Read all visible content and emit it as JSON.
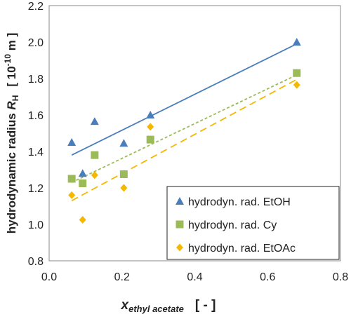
{
  "chart_data": {
    "type": "scatter",
    "xlim": [
      0.0,
      0.8
    ],
    "ylim": [
      0.8,
      2.2
    ],
    "xticks": [
      "0.0",
      "0.2",
      "0.4",
      "0.6",
      "0.8"
    ],
    "yticks": [
      "0.8",
      "1.0",
      "1.2",
      "1.4",
      "1.6",
      "1.8",
      "2.0",
      "2.2"
    ],
    "xlabel": {
      "main": "x",
      "subscript": "ethyl acetate",
      "unit": "[ - ]"
    },
    "ylabel": {
      "main": "hydrodynamic radius ",
      "symbol": "R",
      "subscript": "H",
      "unit_prefix": "[ 10",
      "unit_exponent": "-10",
      "unit_suffix": " m ]"
    },
    "grid": false,
    "legend_position": "bottom-right",
    "series": [
      {
        "name": "hydrodyn. rad. EtOH",
        "marker": "triangle",
        "color": "#4a7ebb",
        "line_style": "solid",
        "x": [
          0.062,
          0.092,
          0.125,
          0.205,
          0.278,
          0.68
        ],
        "y": [
          1.45,
          1.28,
          1.565,
          1.445,
          1.6,
          2.0
        ],
        "fit": [
          [
            0.062,
            1.38
          ],
          [
            0.68,
            1.99
          ]
        ]
      },
      {
        "name": "hydrodyn. rad. Cy",
        "marker": "square",
        "color": "#9bbb59",
        "line_style": "dotted",
        "x": [
          0.062,
          0.092,
          0.125,
          0.205,
          0.278,
          0.68
        ],
        "y": [
          1.25,
          1.225,
          1.38,
          1.275,
          1.465,
          1.83
        ],
        "fit": [
          [
            0.062,
            1.23
          ],
          [
            0.68,
            1.82
          ]
        ]
      },
      {
        "name": "hydrodyn. rad. EtOAc",
        "marker": "diamond",
        "color": "#f5b800",
        "line_style": "dashed",
        "x": [
          0.062,
          0.092,
          0.125,
          0.205,
          0.278,
          0.68
        ],
        "y": [
          1.16,
          1.025,
          1.27,
          1.2,
          1.535,
          1.765
        ],
        "fit": [
          [
            0.062,
            1.13
          ],
          [
            0.68,
            1.795
          ]
        ]
      }
    ]
  }
}
